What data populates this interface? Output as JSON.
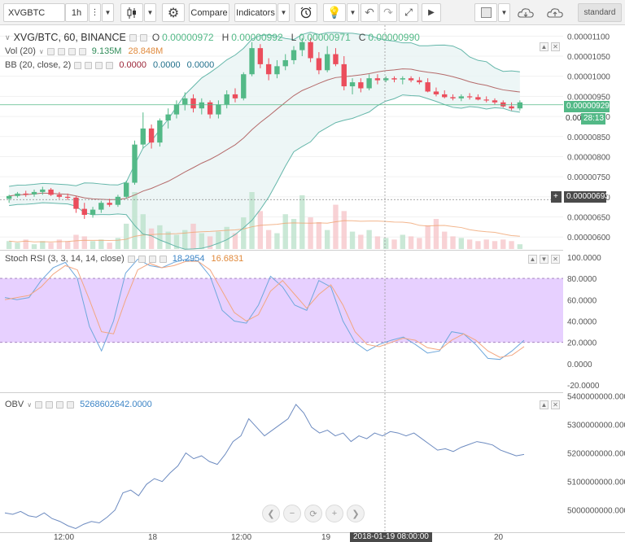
{
  "toolbar": {
    "symbol": "XVGBTC",
    "interval": "1h",
    "compare_label": "Compare",
    "indicators_label": "Indicators",
    "layout_label": "standard",
    "icons": [
      "more-icon",
      "candlestick-icon",
      "gear-icon",
      "alert-icon",
      "bulb-icon",
      "undo-icon",
      "redo-icon",
      "fullscreen-icon",
      "play-icon",
      "color-square-icon",
      "cloud-download-icon",
      "cloud-upload-icon"
    ]
  },
  "main_pane": {
    "title": "XVG/BTC, 60, BINANCE",
    "ohlc": [
      {
        "k": "O",
        "v": "0.00000972"
      },
      {
        "k": "H",
        "v": "0.00000992"
      },
      {
        "k": "L",
        "v": "0.00000971"
      },
      {
        "k": "C",
        "v": "0.00000990"
      }
    ],
    "vol_label": "Vol (20)",
    "vol_value1": "9.135M",
    "vol_value2": "28.848M",
    "bb_label": "BB (20, close, 2)",
    "bb_values": [
      "0.0000",
      "0.0000",
      "0.0000"
    ],
    "price_ticks": [
      "0.00001100",
      "0.00001050",
      "0.00001000",
      "0.00000950",
      "0.00000900",
      "0.00000850",
      "0.00000800",
      "0.00000750",
      "0.00000700",
      "0.00000650",
      "0.00000600"
    ],
    "last_price": "0.00000929",
    "countdown": "28:13",
    "last_price_short": "0.000",
    "crosshair_price": "0.00000693"
  },
  "rsi_pane": {
    "label": "Stoch RSI (3, 3, 14, 14, close)",
    "k_value": "18.2954",
    "d_value": "16.6831",
    "ticks": [
      "100.0000",
      "80.0000",
      "60.0000",
      "40.0000",
      "20.0000",
      "0.0000",
      "-20.0000"
    ]
  },
  "obv_pane": {
    "label": "OBV",
    "value": "5268602642.0000",
    "ticks": [
      "5400000000.0000",
      "5300000000.0000",
      "5200000000.0000",
      "5100000000.0000",
      "5000000000.0000"
    ]
  },
  "time_axis": {
    "labels": [
      "12:00",
      "18",
      "12:00",
      "19",
      "20"
    ],
    "cursor_label": "2018-01-19 08:00:00"
  },
  "colors": {
    "up": "#53b987",
    "down": "#eb4d5c",
    "bb_line": "#65b7aa",
    "bb_basis": "#b56b6b",
    "bb_fill": "#e8f4f4",
    "rsi_k": "#6fa8dc",
    "rsi_d": "#f3a680",
    "rsi_band": "#e3c8ff",
    "obv_line": "#6d8bc0"
  },
  "chart_data": [
    {
      "type": "candlestick",
      "title": "XVG/BTC, 60, BINANCE",
      "ylim": [
        5.8e-06,
        1.12e-05
      ],
      "x_labels": [
        "12:00",
        "18",
        "12:00",
        "19",
        "20"
      ],
      "candles": [
        [
          6.95,
          7.05,
          6.85,
          7.02
        ],
        [
          7.02,
          7.12,
          6.98,
          7.08
        ],
        [
          7.08,
          7.15,
          7.0,
          7.06
        ],
        [
          7.06,
          7.18,
          7.0,
          7.12
        ],
        [
          7.12,
          7.25,
          7.05,
          7.18
        ],
        [
          7.18,
          7.22,
          7.02,
          7.05
        ],
        [
          7.05,
          7.12,
          6.95,
          7.0
        ],
        [
          7.0,
          7.08,
          6.92,
          6.98
        ],
        [
          6.98,
          7.02,
          6.6,
          6.7
        ],
        [
          6.7,
          6.85,
          6.45,
          6.55
        ],
        [
          6.55,
          6.75,
          6.48,
          6.68
        ],
        [
          6.68,
          6.9,
          6.6,
          6.85
        ],
        [
          6.85,
          6.95,
          6.75,
          6.8
        ],
        [
          6.8,
          7.05,
          6.75,
          7.0
        ],
        [
          7.0,
          7.4,
          6.95,
          7.35
        ],
        [
          7.35,
          8.4,
          7.3,
          8.3
        ],
        [
          8.3,
          9.1,
          8.2,
          8.7
        ],
        [
          8.7,
          8.8,
          8.2,
          8.35
        ],
        [
          8.35,
          8.95,
          8.25,
          8.9
        ],
        [
          8.9,
          9.2,
          8.7,
          9.05
        ],
        [
          9.05,
          9.4,
          8.95,
          9.3
        ],
        [
          9.3,
          9.6,
          9.15,
          9.45
        ],
        [
          9.45,
          9.55,
          9.1,
          9.2
        ],
        [
          9.2,
          9.45,
          9.05,
          9.35
        ],
        [
          9.35,
          9.4,
          8.95,
          9.05
        ],
        [
          9.05,
          9.4,
          8.95,
          9.3
        ],
        [
          9.3,
          9.65,
          9.2,
          9.55
        ],
        [
          9.55,
          9.7,
          9.35,
          9.45
        ],
        [
          9.45,
          10.1,
          9.4,
          10.05
        ],
        [
          10.05,
          10.85,
          10.0,
          10.7
        ],
        [
          10.7,
          10.8,
          10.2,
          10.3
        ],
        [
          10.3,
          10.45,
          9.9,
          10.05
        ],
        [
          10.05,
          10.4,
          9.95,
          10.25
        ],
        [
          10.25,
          10.55,
          10.15,
          10.4
        ],
        [
          10.4,
          10.75,
          10.3,
          10.65
        ],
        [
          10.65,
          10.95,
          10.5,
          10.85
        ],
        [
          10.85,
          10.95,
          10.35,
          10.45
        ],
        [
          10.45,
          10.6,
          10.05,
          10.15
        ],
        [
          10.15,
          10.75,
          10.1,
          10.55
        ],
        [
          10.55,
          10.7,
          10.25,
          10.3
        ],
        [
          10.3,
          10.5,
          9.65,
          9.75
        ],
        [
          9.75,
          9.95,
          9.55,
          9.85
        ],
        [
          9.85,
          9.95,
          9.6,
          9.7
        ],
        [
          9.7,
          10.05,
          9.65,
          9.95
        ],
        [
          9.95,
          10.05,
          9.8,
          9.9
        ],
        [
          9.9,
          10.0,
          9.85,
          9.95
        ],
        [
          9.95,
          10.0,
          9.85,
          9.92
        ],
        [
          9.92,
          10.0,
          9.8,
          9.95
        ],
        [
          9.95,
          10.0,
          9.85,
          9.9
        ],
        [
          9.9,
          9.98,
          9.8,
          9.85
        ],
        [
          9.85,
          9.95,
          9.6,
          9.62
        ],
        [
          9.62,
          9.72,
          9.5,
          9.55
        ],
        [
          9.55,
          9.65,
          9.45,
          9.48
        ],
        [
          9.48,
          9.55,
          9.4,
          9.45
        ],
        [
          9.45,
          9.55,
          9.38,
          9.5
        ],
        [
          9.5,
          9.58,
          9.42,
          9.48
        ],
        [
          9.48,
          9.55,
          9.4,
          9.42
        ],
        [
          9.42,
          9.5,
          9.35,
          9.4
        ],
        [
          9.4,
          9.45,
          9.3,
          9.35
        ],
        [
          9.35,
          9.4,
          9.22,
          9.25
        ],
        [
          9.25,
          9.35,
          9.15,
          9.2
        ],
        [
          9.2,
          9.4,
          9.15,
          9.35
        ]
      ],
      "volumes": [
        0.5,
        0.4,
        0.6,
        0.3,
        0.5,
        0.4,
        0.6,
        0.5,
        0.9,
        0.8,
        0.5,
        0.6,
        0.4,
        0.7,
        1.6,
        3.6,
        2.2,
        1.3,
        1.5,
        1.1,
        0.9,
        1.2,
        1.6,
        1.0,
        0.8,
        1.1,
        1.4,
        1.0,
        2.0,
        3.6,
        2.4,
        1.2,
        1.0,
        2.2,
        1.9,
        3.4,
        2.0,
        1.7,
        1.2,
        2.8,
        2.4,
        1.1,
        0.9,
        1.2,
        0.8,
        0.7,
        0.6,
        0.9,
        0.8,
        0.7,
        1.5,
        1.9,
        1.1,
        0.8,
        0.7,
        0.6,
        0.5,
        0.6,
        0.5,
        0.6,
        0.5,
        0.3
      ]
    },
    {
      "type": "line",
      "title": "Stoch RSI (3, 3, 14, 14, close)",
      "ylim": [
        -20,
        100
      ],
      "series": [
        {
          "name": "K",
          "values": [
            62,
            60,
            62,
            78,
            90,
            95,
            80,
            35,
            12,
            40,
            85,
            98,
            92,
            90,
            95,
            98,
            96,
            82,
            50,
            40,
            38,
            55,
            82,
            72,
            55,
            50,
            78,
            72,
            40,
            20,
            12,
            18,
            22,
            25,
            18,
            10,
            12,
            30,
            28,
            18,
            5,
            4,
            12,
            22
          ]
        },
        {
          "name": "D",
          "values": [
            60,
            62,
            64,
            72,
            84,
            92,
            88,
            60,
            30,
            28,
            60,
            88,
            94,
            90,
            92,
            96,
            96,
            88,
            68,
            48,
            40,
            46,
            68,
            78,
            65,
            52,
            65,
            74,
            55,
            30,
            18,
            16,
            20,
            24,
            22,
            15,
            13,
            22,
            28,
            22,
            12,
            6,
            8,
            16
          ]
        }
      ]
    },
    {
      "type": "line",
      "title": "OBV",
      "ylim": [
        4950000000,
        5400000000
      ],
      "series": [
        {
          "name": "OBV",
          "values": [
            4990,
            4985,
            4995,
            4980,
            4975,
            4990,
            4970,
            4960,
            4945,
            4935,
            4950,
            4960,
            4955,
            4975,
            5000,
            5060,
            5070,
            5050,
            5090,
            5110,
            5100,
            5130,
            5155,
            5200,
            5180,
            5190,
            5170,
            5160,
            5195,
            5240,
            5260,
            5320,
            5290,
            5260,
            5280,
            5300,
            5320,
            5370,
            5340,
            5290,
            5270,
            5280,
            5260,
            5270,
            5240,
            5260,
            5250,
            5270,
            5260,
            5275,
            5270,
            5260,
            5270,
            5250,
            5230,
            5210,
            5215,
            5205,
            5220,
            5230,
            5240,
            5235,
            5228,
            5210,
            5200,
            5190,
            5195
          ]
        }
      ]
    }
  ]
}
